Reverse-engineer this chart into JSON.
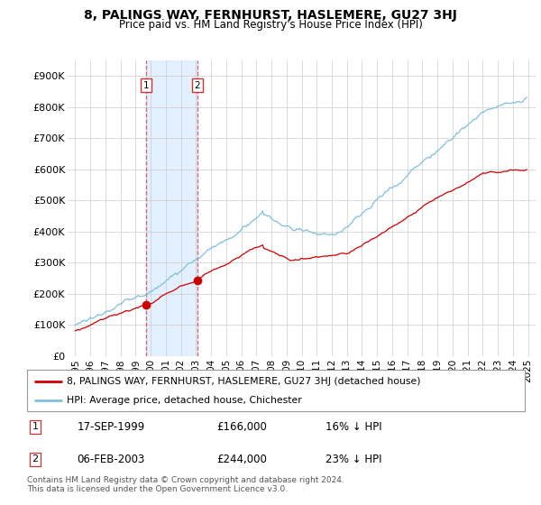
{
  "title": "8, PALINGS WAY, FERNHURST, HASLEMERE, GU27 3HJ",
  "subtitle": "Price paid vs. HM Land Registry's House Price Index (HPI)",
  "legend_line1": "8, PALINGS WAY, FERNHURST, HASLEMERE, GU27 3HJ (detached house)",
  "legend_line2": "HPI: Average price, detached house, Chichester",
  "footer": "Contains HM Land Registry data © Crown copyright and database right 2024.\nThis data is licensed under the Open Government Licence v3.0.",
  "transaction1_date_str": "17-SEP-1999",
  "transaction1_price_str": "£166,000",
  "transaction1_hpi_str": "16% ↓ HPI",
  "transaction2_date_str": "06-FEB-2003",
  "transaction2_price_str": "£244,000",
  "transaction2_hpi_str": "23% ↓ HPI",
  "hpi_color": "#7fbfdf",
  "price_color": "#cc0000",
  "shade_color": "#ddeeff",
  "vline_color": "#dd4444",
  "ylim": [
    0,
    950000
  ],
  "yticks": [
    0,
    100000,
    200000,
    300000,
    400000,
    500000,
    600000,
    700000,
    800000,
    900000
  ],
  "ytick_labels": [
    "£0",
    "£100K",
    "£200K",
    "£300K",
    "£400K",
    "£500K",
    "£600K",
    "£700K",
    "£800K",
    "£900K"
  ],
  "transaction1_x": 1999.71,
  "transaction1_y": 166000,
  "transaction2_x": 2003.09,
  "transaction2_y": 244000,
  "xmin": 1995.0,
  "xmax": 2025.5
}
